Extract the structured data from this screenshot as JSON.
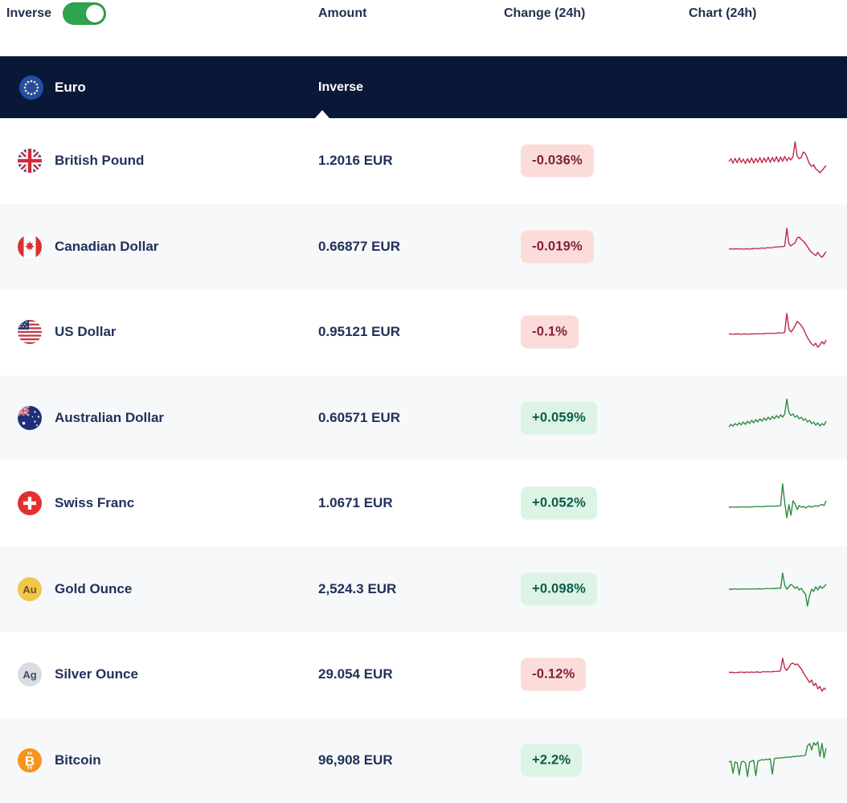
{
  "controls": {
    "inverse_label": "Inverse",
    "inverse_toggle_state": "on"
  },
  "columns": {
    "amount": "Amount",
    "change": "Change (24h)",
    "chart": "Chart (24h)"
  },
  "base_row": {
    "name": "Euro",
    "icon": "eu-flag",
    "inverse_column_label": "Inverse"
  },
  "colors": {
    "toggle_on": "#2fa44f",
    "header_bg": "#0a1838",
    "text_navy": "#22315a",
    "positive_line": "#2f8b3f",
    "negative_line": "#c02945",
    "positive_badge_bg": "#ddf3e6",
    "positive_badge_text": "#0b5c49",
    "negative_badge_bg": "#fcdcd8",
    "negative_badge_text": "#7d2040",
    "alt_row_bg": "#f7f8fa"
  },
  "rows": [
    {
      "name": "British Pound",
      "icon": "uk-flag",
      "amount": "1.2016 EUR",
      "change": "-0.036%",
      "trend": "negative",
      "sparkline": [
        48,
        55,
        44,
        56,
        45,
        57,
        46,
        54,
        43,
        55,
        45,
        57,
        44,
        56,
        46,
        58,
        45,
        57,
        47,
        59,
        46,
        58,
        48,
        60,
        47,
        59,
        49,
        61,
        50,
        58,
        52,
        60,
        97,
        62,
        55,
        58,
        72,
        68,
        55,
        42,
        36,
        40,
        30,
        26,
        20,
        26,
        32,
        38
      ]
    },
    {
      "name": "Canadian Dollar",
      "icon": "canada-flag",
      "amount": "0.66877 EUR",
      "change": "-0.019%",
      "trend": "negative",
      "sparkline": [
        44,
        45,
        44,
        45,
        45,
        44,
        45,
        44,
        45,
        45,
        44,
        45,
        45,
        46,
        45,
        46,
        47,
        46,
        47,
        48,
        47,
        48,
        49,
        50,
        49,
        51,
        50,
        52,
        96,
        58,
        52,
        56,
        60,
        72,
        74,
        68,
        64,
        58,
        50,
        42,
        36,
        32,
        28,
        36,
        28,
        24,
        30,
        38
      ]
    },
    {
      "name": "US Dollar",
      "icon": "us-flag",
      "amount": "0.95121 EUR",
      "change": "-0.1%",
      "trend": "negative",
      "sparkline": [
        45,
        45,
        44,
        45,
        45,
        45,
        44,
        45,
        45,
        44,
        45,
        45,
        45,
        46,
        45,
        46,
        45,
        46,
        46,
        47,
        46,
        47,
        46,
        47,
        48,
        47,
        48,
        49,
        96,
        58,
        50,
        56,
        66,
        76,
        72,
        66,
        58,
        46,
        36,
        28,
        20,
        16,
        22,
        12,
        18,
        26,
        20,
        30
      ]
    },
    {
      "name": "Australian Dollar",
      "icon": "australia-flag",
      "amount": "0.60571 EUR",
      "change": "+0.059%",
      "trend": "positive",
      "sparkline": [
        28,
        34,
        30,
        36,
        32,
        38,
        33,
        40,
        34,
        42,
        36,
        44,
        38,
        46,
        40,
        48,
        42,
        50,
        44,
        52,
        46,
        54,
        48,
        56,
        50,
        58,
        52,
        60,
        97,
        64,
        56,
        60,
        52,
        56,
        48,
        52,
        44,
        48,
        40,
        44,
        36,
        40,
        32,
        38,
        30,
        36,
        32,
        42
      ]
    },
    {
      "name": "Swiss Franc",
      "icon": "switzerland-flag",
      "amount": "1.0671 EUR",
      "change": "+0.052%",
      "trend": "positive",
      "sparkline": [
        40,
        40,
        41,
        40,
        40,
        41,
        40,
        41,
        40,
        41,
        40,
        41,
        41,
        42,
        41,
        42,
        41,
        42,
        42,
        43,
        42,
        43,
        42,
        43,
        43,
        44,
        98,
        52,
        14,
        46,
        20,
        56,
        48,
        34,
        44,
        40,
        42,
        38,
        41,
        43,
        40,
        42,
        44,
        42,
        45,
        47,
        44,
        56
      ]
    },
    {
      "name": "Gold Ounce",
      "icon": "gold-au",
      "amount": "2,524.3 EUR",
      "change": "+0.098%",
      "trend": "positive",
      "sparkline": [
        50,
        50,
        50,
        51,
        50,
        50,
        51,
        50,
        51,
        50,
        51,
        50,
        51,
        50,
        51,
        51,
        50,
        51,
        52,
        51,
        52,
        51,
        52,
        52,
        53,
        52,
        90,
        60,
        50,
        56,
        62,
        58,
        52,
        56,
        48,
        52,
        44,
        38,
        8,
        34,
        50,
        44,
        56,
        48,
        58,
        52,
        56,
        62
      ]
    },
    {
      "name": "Silver Ounce",
      "icon": "silver-ag",
      "amount": "29.054 EUR",
      "change": "-0.12%",
      "trend": "negative",
      "sparkline": [
        55,
        55,
        55,
        54,
        55,
        55,
        56,
        55,
        55,
        56,
        55,
        56,
        55,
        56,
        56,
        55,
        56,
        57,
        56,
        57,
        56,
        57,
        57,
        58,
        57,
        60,
        90,
        66,
        60,
        68,
        76,
        78,
        74,
        76,
        70,
        64,
        54,
        46,
        38,
        30,
        36,
        22,
        28,
        14,
        20,
        8,
        16,
        12
      ]
    },
    {
      "name": "Bitcoin",
      "icon": "bitcoin",
      "amount": "96,908 EUR",
      "change": "+2.2%",
      "trend": "positive",
      "sparkline": [
        46,
        48,
        18,
        46,
        44,
        14,
        46,
        48,
        44,
        10,
        46,
        48,
        50,
        12,
        48,
        50,
        52,
        51,
        53,
        52,
        54,
        16,
        54,
        56,
        55,
        57,
        56,
        58,
        57,
        59,
        58,
        60,
        59,
        61,
        60,
        62,
        61,
        63,
        86,
        92,
        76,
        94,
        88,
        96,
        60,
        92,
        56,
        80
      ]
    }
  ]
}
